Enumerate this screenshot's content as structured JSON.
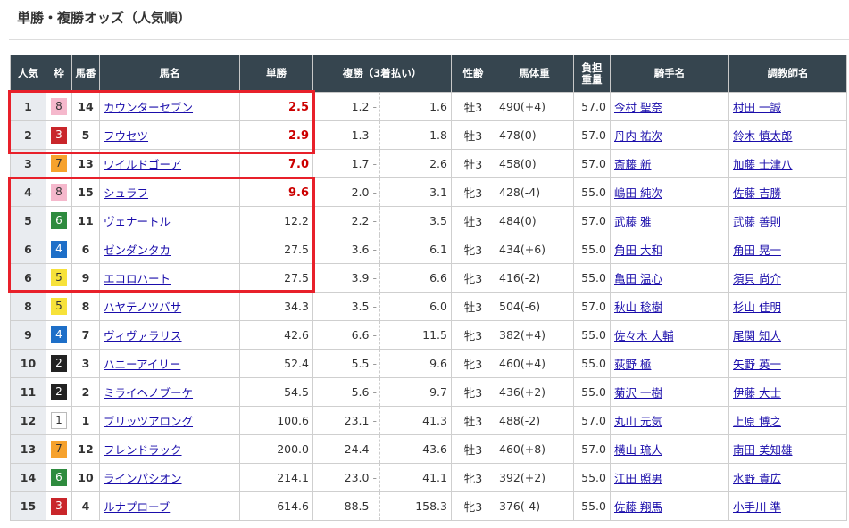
{
  "title": "単勝・複勝オッズ（人気順）",
  "headers": [
    "人気",
    "枠",
    "馬番",
    "馬名",
    "単勝",
    "複勝（3着払い）",
    "性齢",
    "馬体重",
    "負担重量",
    "騎手名",
    "調教師名"
  ],
  "frame_colors": {
    "1": [
      "#ffffff",
      "#333"
    ],
    "2": [
      "#222222",
      "#fff"
    ],
    "3": [
      "#c9262b",
      "#fff"
    ],
    "4": [
      "#1e6fc8",
      "#fff"
    ],
    "5": [
      "#f7e23a",
      "#333"
    ],
    "6": [
      "#2e8b3e",
      "#fff"
    ],
    "7": [
      "#f6a22d",
      "#333"
    ],
    "8": [
      "#f5b8cc",
      "#333"
    ]
  },
  "highlight_color": "#e8202a",
  "rows": [
    {
      "pop": "1",
      "waku": "8",
      "umaban": "14",
      "horse": "カウンターセブン",
      "win": "2.5",
      "place_lo": "1.2",
      "place_hi": "1.6",
      "sexage": "牡3",
      "weight": "490(+4)",
      "burden": "57.0",
      "jockey": "今村 聖奈",
      "trainer": "村田 一誠"
    },
    {
      "pop": "2",
      "waku": "3",
      "umaban": "5",
      "horse": "フウセツ",
      "win": "2.9",
      "place_lo": "1.3",
      "place_hi": "1.8",
      "sexage": "牡3",
      "weight": "478(0)",
      "burden": "57.0",
      "jockey": "丹内 祐次",
      "trainer": "鈴木 慎太郎"
    },
    {
      "pop": "3",
      "waku": "7",
      "umaban": "13",
      "horse": "ワイルドゴーア",
      "win": "7.0",
      "place_lo": "1.7",
      "place_hi": "2.6",
      "sexage": "牡3",
      "weight": "458(0)",
      "burden": "57.0",
      "jockey": "斎藤 新",
      "trainer": "加藤 士津八"
    },
    {
      "pop": "4",
      "waku": "8",
      "umaban": "15",
      "horse": "シュラフ",
      "win": "9.6",
      "place_lo": "2.0",
      "place_hi": "3.1",
      "sexage": "牝3",
      "weight": "428(-4)",
      "burden": "55.0",
      "jockey": "嶋田 純次",
      "trainer": "佐藤 吉勝"
    },
    {
      "pop": "5",
      "waku": "6",
      "umaban": "11",
      "horse": "ヴェナートル",
      "win": "12.2",
      "place_lo": "2.2",
      "place_hi": "3.5",
      "sexage": "牡3",
      "weight": "484(0)",
      "burden": "57.0",
      "jockey": "武藤 雅",
      "trainer": "武藤 善則"
    },
    {
      "pop": "6",
      "waku": "4",
      "umaban": "6",
      "horse": "ゼンダンタカ",
      "win": "27.5",
      "place_lo": "3.6",
      "place_hi": "6.1",
      "sexage": "牝3",
      "weight": "434(+6)",
      "burden": "55.0",
      "jockey": "角田 大和",
      "trainer": "角田 晃一"
    },
    {
      "pop": "6",
      "waku": "5",
      "umaban": "9",
      "horse": "エコロハート",
      "win": "27.5",
      "place_lo": "3.9",
      "place_hi": "6.6",
      "sexage": "牝3",
      "weight": "416(-2)",
      "burden": "55.0",
      "jockey": "亀田 温心",
      "trainer": "須貝 尚介"
    },
    {
      "pop": "8",
      "waku": "5",
      "umaban": "8",
      "horse": "ハヤテノツバサ",
      "win": "34.3",
      "place_lo": "3.5",
      "place_hi": "6.0",
      "sexage": "牡3",
      "weight": "504(-6)",
      "burden": "57.0",
      "jockey": "秋山 稔樹",
      "trainer": "杉山 佳明"
    },
    {
      "pop": "9",
      "waku": "4",
      "umaban": "7",
      "horse": "ヴィヴァラリス",
      "win": "42.6",
      "place_lo": "6.6",
      "place_hi": "11.5",
      "sexage": "牝3",
      "weight": "382(+4)",
      "burden": "55.0",
      "jockey": "佐々木 大輔",
      "trainer": "尾関 知人"
    },
    {
      "pop": "10",
      "waku": "2",
      "umaban": "3",
      "horse": "ハニーアイリー",
      "win": "52.4",
      "place_lo": "5.5",
      "place_hi": "9.6",
      "sexage": "牝3",
      "weight": "460(+4)",
      "burden": "55.0",
      "jockey": "荻野 極",
      "trainer": "矢野 英一"
    },
    {
      "pop": "11",
      "waku": "2",
      "umaban": "2",
      "horse": "ミライヘノブーケ",
      "win": "54.5",
      "place_lo": "5.6",
      "place_hi": "9.7",
      "sexage": "牝3",
      "weight": "436(+2)",
      "burden": "55.0",
      "jockey": "菊沢 一樹",
      "trainer": "伊藤 大士"
    },
    {
      "pop": "12",
      "waku": "1",
      "umaban": "1",
      "horse": "ブリッツアロング",
      "win": "100.6",
      "place_lo": "23.1",
      "place_hi": "41.3",
      "sexage": "牡3",
      "weight": "488(-2)",
      "burden": "57.0",
      "jockey": "丸山 元気",
      "trainer": "上原 博之"
    },
    {
      "pop": "13",
      "waku": "7",
      "umaban": "12",
      "horse": "フレンドラック",
      "win": "200.0",
      "place_lo": "24.4",
      "place_hi": "43.6",
      "sexage": "牡3",
      "weight": "460(+8)",
      "burden": "57.0",
      "jockey": "横山 琉人",
      "trainer": "南田 美知雄"
    },
    {
      "pop": "14",
      "waku": "6",
      "umaban": "10",
      "horse": "ラインパシオン",
      "win": "214.1",
      "place_lo": "23.0",
      "place_hi": "41.1",
      "sexage": "牝3",
      "weight": "392(+2)",
      "burden": "55.0",
      "jockey": "江田 照男",
      "trainer": "水野 貴広"
    },
    {
      "pop": "15",
      "waku": "3",
      "umaban": "4",
      "horse": "ルナプローブ",
      "win": "614.6",
      "place_lo": "88.5",
      "place_hi": "158.3",
      "sexage": "牝3",
      "weight": "376(-4)",
      "burden": "55.0",
      "jockey": "佐藤 翔馬",
      "trainer": "小手川 準"
    }
  ]
}
